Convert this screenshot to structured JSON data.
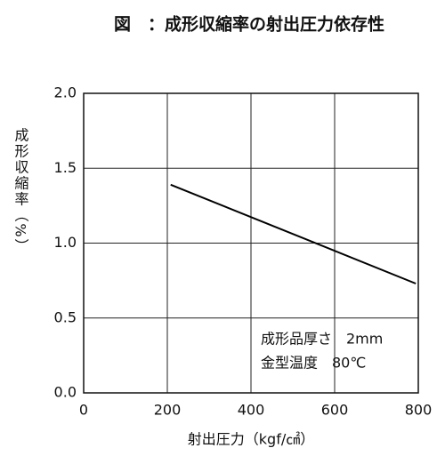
{
  "chart_data": {
    "type": "line",
    "title": "図　：成形収縮率の射出圧力依存性",
    "x_label": "射出圧力（kgf/㎠）",
    "y_label": "成形収縮率（%）",
    "x": [
      208,
      794
    ],
    "series": [
      {
        "color": "#000000",
        "values": [
          1.39,
          0.73
        ]
      }
    ],
    "xlim": [
      0,
      800
    ],
    "xticks": [
      0,
      200,
      400,
      600,
      800
    ],
    "ylim": [
      0,
      2
    ],
    "yticks": [
      {
        "value": 0,
        "label": "0.0"
      },
      0.5,
      {
        "value": 1,
        "label": "1.0"
      },
      1.5,
      {
        "value": 2,
        "label": "2.0"
      }
    ],
    "grid": true,
    "annotations": [
      "成形品厚さ　2mm",
      "金型温度　80℃"
    ]
  }
}
